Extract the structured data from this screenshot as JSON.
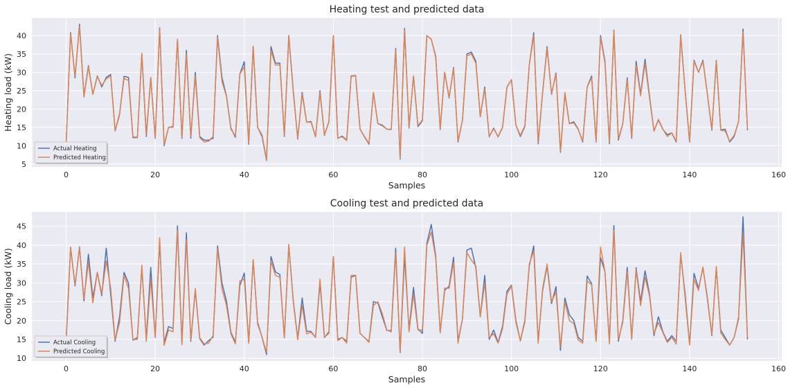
{
  "colors": {
    "axes_bg": "#EAEAF2",
    "grid": "#FFFFFF",
    "actual": "#4C72B0",
    "predicted": "#DD8452"
  },
  "chart_data": [
    {
      "type": "line",
      "title": "Heating test and predicted data",
      "xlabel": "Samples",
      "ylabel": "Heating load (kW)",
      "xlim": [
        -7.7,
        160.7
      ],
      "ylim": [
        4.2,
        44.8
      ],
      "xticks": [
        0,
        20,
        40,
        60,
        80,
        100,
        120,
        140,
        160
      ],
      "yticks": [
        5,
        10,
        15,
        20,
        25,
        30,
        35,
        40
      ],
      "legend_position": "lower-left",
      "series": [
        {
          "name": "Actual Heating",
          "values": [
            10.5,
            40.8,
            28.5,
            43.1,
            23.5,
            31.8,
            24.0,
            29.0,
            26.0,
            28.6,
            29.4,
            14.0,
            18.5,
            28.9,
            28.6,
            12.2,
            12.2,
            35.0,
            12.5,
            28.5,
            12.0,
            42.1,
            10.0,
            15.0,
            15.2,
            39.0,
            12.0,
            36.0,
            12.0,
            30.0,
            12.5,
            11.5,
            11.5,
            12.0,
            40.0,
            28.5,
            23.6,
            14.8,
            12.3,
            29.5,
            32.9,
            10.4,
            37.0,
            15.0,
            12.5,
            6.0,
            37.0,
            32.5,
            32.5,
            12.5,
            40.0,
            25.0,
            11.8,
            24.5,
            16.4,
            16.6,
            12.4,
            25.0,
            12.8,
            16.6,
            40.0,
            12.0,
            12.6,
            11.5,
            29.0,
            29.1,
            14.5,
            12.4,
            10.4,
            24.5,
            16.0,
            15.6,
            14.5,
            14.4,
            36.5,
            6.3,
            42.0,
            14.8,
            29.0,
            15.2,
            16.8,
            40.0,
            39.0,
            34.3,
            14.4,
            30.0,
            23.0,
            31.3,
            11.0,
            17.0,
            35.0,
            35.5,
            33.0,
            17.9,
            26.0,
            12.4,
            14.8,
            12.4,
            15.0,
            26.0,
            28.0,
            15.6,
            12.5,
            15.2,
            32.0,
            40.8,
            10.5,
            24.5,
            37.0,
            24.0,
            29.8,
            8.2,
            24.2,
            16.0,
            16.5,
            14.5,
            11.0,
            26.0,
            29.0,
            11.0,
            40.0,
            33.0,
            10.5,
            41.5,
            11.5,
            16.0,
            28.5,
            12.0,
            33.0,
            24.0,
            33.6,
            23.5,
            14.0,
            17.0,
            14.4,
            13.0,
            13.5,
            11.0,
            40.2,
            25.0,
            11.0,
            33.3,
            30.0,
            33.3,
            24.0,
            14.2,
            33.2,
            14.3,
            14.5,
            11.0,
            12.5,
            16.6,
            41.8,
            14.2
          ]
        },
        {
          "name": "Predicted Heating",
          "values": [
            10.8,
            40.5,
            29.0,
            42.5,
            23.2,
            31.5,
            24.0,
            28.8,
            26.4,
            28.2,
            29.0,
            14.1,
            18.8,
            28.3,
            27.8,
            12.4,
            12.3,
            35.2,
            12.9,
            28.6,
            12.1,
            41.8,
            10.3,
            15.0,
            15.0,
            39.0,
            12.3,
            35.0,
            12.4,
            29.0,
            12.2,
            11.0,
            11.2,
            12.5,
            39.5,
            27.5,
            23.4,
            14.5,
            12.6,
            29.5,
            31.5,
            10.7,
            37.1,
            15.0,
            12.9,
            6.2,
            36.0,
            32.0,
            32.0,
            12.8,
            40.0,
            24.5,
            12.0,
            24.0,
            16.4,
            16.4,
            12.5,
            24.5,
            12.8,
            16.4,
            40.0,
            12.1,
            12.4,
            11.4,
            28.9,
            29.0,
            14.5,
            12.5,
            10.6,
            24.5,
            16.0,
            15.4,
            14.5,
            14.5,
            36.0,
            6.5,
            41.5,
            15.0,
            29.0,
            15.5,
            17.0,
            40.0,
            39.0,
            34.0,
            14.6,
            30.0,
            23.2,
            31.0,
            11.2,
            17.0,
            34.5,
            35.0,
            32.5,
            18.0,
            25.5,
            12.5,
            14.6,
            12.5,
            15.1,
            26.0,
            28.0,
            15.6,
            12.8,
            15.4,
            32.0,
            40.0,
            10.8,
            24.5,
            36.5,
            24.2,
            29.5,
            8.5,
            24.5,
            16.0,
            16.2,
            14.4,
            11.2,
            26.0,
            28.5,
            11.2,
            39.5,
            32.5,
            10.8,
            41.5,
            11.8,
            16.0,
            28.0,
            12.4,
            32.0,
            23.6,
            32.5,
            23.0,
            14.0,
            17.2,
            14.5,
            12.5,
            13.5,
            11.2,
            40.0,
            25.0,
            11.2,
            33.0,
            30.0,
            33.0,
            24.0,
            14.4,
            33.0,
            14.2,
            14.0,
            11.2,
            12.8,
            16.5,
            41.0,
            14.5
          ]
        }
      ]
    },
    {
      "type": "line",
      "title": "Cooling test and predicted data",
      "xlabel": "Samples",
      "ylabel": "Cooling load (kW)",
      "xlim": [
        -7.7,
        160.7
      ],
      "ylim": [
        9.3,
        48.8
      ],
      "xticks": [
        0,
        20,
        40,
        60,
        80,
        100,
        120,
        140,
        160
      ],
      "yticks": [
        10,
        15,
        20,
        25,
        30,
        35,
        40,
        45
      ],
      "legend_position": "lower-left",
      "series": [
        {
          "name": "Actual Cooling",
          "values": [
            14.5,
            39.3,
            29.2,
            39.5,
            25.2,
            37.6,
            26.0,
            32.7,
            26.6,
            39.2,
            27.0,
            14.5,
            21.0,
            32.8,
            29.9,
            14.8,
            15.5,
            34.0,
            15.2,
            34.1,
            15.5,
            41.0,
            14.1,
            18.4,
            17.9,
            45.1,
            14.0,
            43.3,
            14.5,
            28.1,
            15.2,
            13.5,
            14.7,
            15.6,
            39.8,
            29.9,
            25.2,
            16.9,
            14.2,
            29.2,
            32.6,
            14.1,
            36.0,
            19.5,
            15.5,
            11.0,
            37.0,
            32.9,
            32.2,
            15.4,
            40.0,
            25.4,
            15.2,
            26.0,
            17.2,
            17.1,
            15.5,
            30.0,
            15.5,
            17.0,
            37.0,
            15.0,
            15.5,
            14.5,
            31.5,
            32.0,
            16.6,
            15.5,
            14.4,
            25.0,
            24.7,
            21.0,
            17.4,
            17.3,
            39.2,
            11.5,
            37.0,
            17.5,
            28.8,
            17.8,
            16.6,
            40.5,
            45.5,
            37.0,
            16.8,
            28.0,
            29.1,
            36.8,
            14.5,
            20.5,
            38.7,
            39.2,
            34.0,
            21.0,
            32.0,
            15.0,
            17.5,
            14.2,
            18.5,
            27.8,
            29.4,
            20.0,
            14.6,
            20.0,
            34.5,
            39.8,
            14.4,
            28.0,
            34.5,
            24.5,
            29.0,
            12.1,
            26.0,
            21.5,
            20.0,
            15.5,
            14.5,
            31.8,
            29.8,
            14.5,
            36.7,
            33.0,
            14.2,
            45.2,
            14.5,
            20.0,
            34.1,
            15.2,
            34.0,
            25.0,
            33.2,
            27.0,
            16.0,
            21.0,
            17.0,
            14.5,
            16.0,
            14.5,
            37.5,
            27.0,
            13.8,
            32.5,
            28.5,
            34.0,
            26.0,
            16.0,
            34.0,
            17.5,
            15.5,
            13.5,
            15.5,
            20.5,
            47.5,
            15.0
          ]
        },
        {
          "name": "Predicted Cooling",
          "values": [
            15.4,
            39.5,
            29.5,
            39.3,
            25.8,
            35.5,
            24.7,
            32.8,
            27.1,
            35.8,
            28.6,
            14.8,
            19.5,
            32.0,
            28.5,
            15.0,
            15.0,
            34.7,
            14.5,
            31.0,
            15.6,
            42.0,
            13.4,
            17.5,
            17.0,
            44.0,
            13.6,
            41.5,
            14.8,
            28.5,
            15.4,
            13.8,
            14.0,
            16.0,
            39.0,
            28.4,
            24.0,
            16.5,
            13.8,
            30.5,
            31.0,
            14.0,
            36.2,
            19.0,
            15.6,
            11.5,
            35.7,
            32.0,
            31.5,
            15.5,
            40.2,
            25.0,
            14.9,
            24.0,
            16.5,
            16.9,
            15.5,
            31.0,
            15.6,
            16.6,
            37.0,
            14.7,
            15.5,
            14.0,
            32.0,
            32.0,
            16.6,
            15.5,
            14.2,
            24.0,
            25.0,
            21.8,
            17.5,
            17.0,
            38.0,
            11.7,
            39.5,
            17.0,
            27.0,
            17.5,
            17.5,
            40.0,
            43.5,
            36.5,
            16.8,
            28.6,
            28.6,
            35.5,
            14.0,
            20.5,
            38.0,
            36.0,
            34.5,
            21.0,
            30.0,
            15.5,
            16.5,
            14.0,
            17.8,
            27.0,
            29.2,
            19.5,
            14.6,
            19.5,
            35.0,
            38.5,
            14.0,
            28.5,
            35.0,
            25.0,
            27.5,
            13.0,
            25.0,
            20.0,
            19.2,
            14.8,
            14.0,
            30.5,
            29.5,
            14.5,
            39.5,
            33.0,
            13.8,
            44.0,
            15.0,
            19.5,
            33.0,
            15.0,
            33.5,
            24.0,
            31.5,
            26.5,
            16.5,
            19.5,
            16.8,
            14.2,
            15.5,
            13.8,
            38.0,
            26.0,
            13.5,
            31.0,
            28.0,
            34.2,
            25.5,
            16.2,
            34.3,
            16.7,
            15.0,
            13.5,
            15.5,
            21.0,
            43.0,
            15.5
          ]
        }
      ]
    }
  ]
}
